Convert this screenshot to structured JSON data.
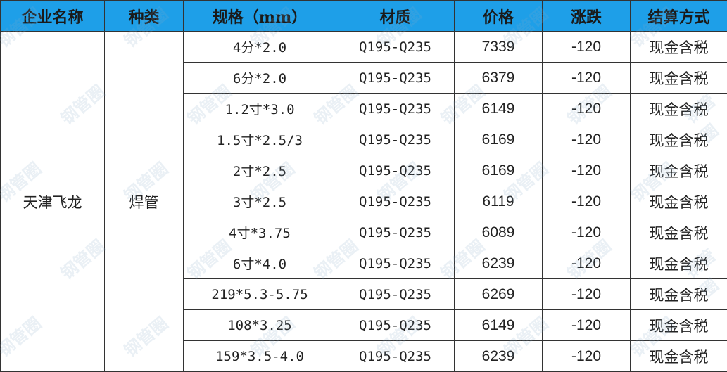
{
  "watermark": "钢管圈",
  "table": {
    "header": [
      "企业名称",
      "种类",
      "规格（mm）",
      "材质",
      "价格",
      "涨跌",
      "结算方式"
    ],
    "company": "天津飞龙",
    "kind": "焊管",
    "rows": [
      [
        "4分*2.0",
        "Q195-Q235",
        7339,
        -120,
        "现金含税"
      ],
      [
        "6分*2.0",
        "Q195-Q235",
        6379,
        -120,
        "现金含税"
      ],
      [
        "1.2寸*3.0",
        "Q195-Q235",
        6149,
        -120,
        "现金含税"
      ],
      [
        "1.5寸*2.5/3",
        "Q195-Q235",
        6169,
        -120,
        "现金含税"
      ],
      [
        "2寸*2.5",
        "Q195-Q235",
        6169,
        -120,
        "现金含税"
      ],
      [
        "3寸*2.5",
        "Q195-Q235",
        6119,
        -120,
        "现金含税"
      ],
      [
        "4寸*3.75",
        "Q195-Q235",
        6089,
        -120,
        "现金含税"
      ],
      [
        "6寸*4.0",
        "Q195-Q235",
        6239,
        -120,
        "现金含税"
      ],
      [
        "219*5.3-5.75",
        "Q195-Q235",
        6269,
        -120,
        "现金含税"
      ],
      [
        "108*3.25",
        "Q195-Q235",
        6149,
        -120,
        "现金含税"
      ],
      [
        "159*3.5-4.0",
        "Q195-Q235",
        6239,
        -120,
        "现金含税"
      ]
    ]
  }
}
